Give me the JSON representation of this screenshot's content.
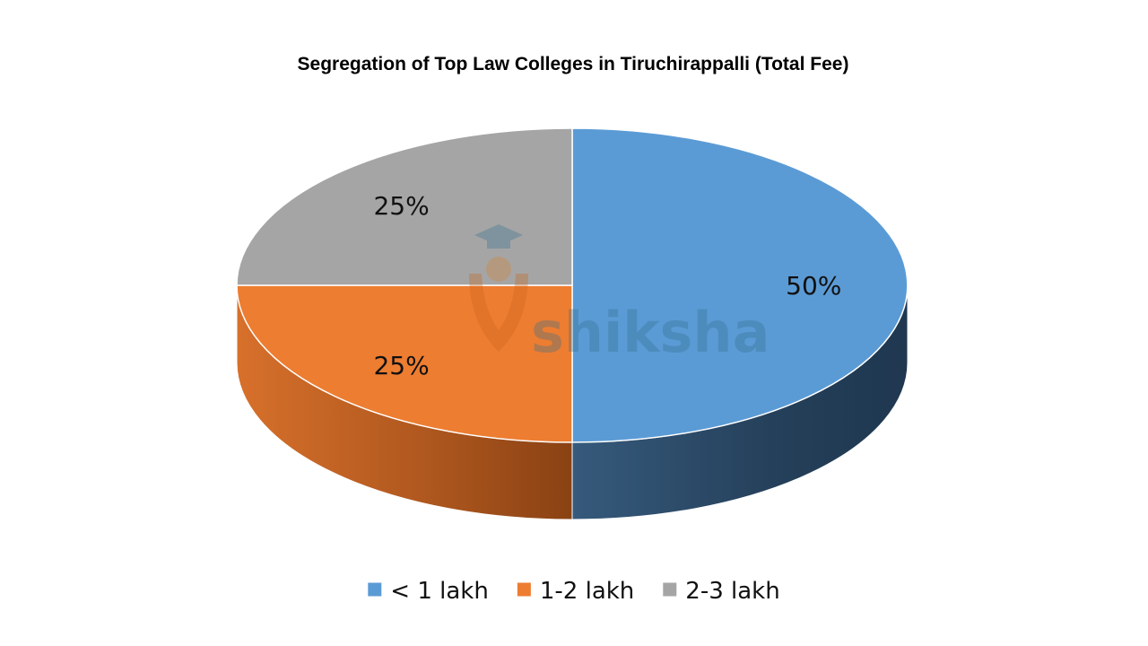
{
  "chart_data": {
    "type": "pie",
    "title": "Segregation of Top Law Colleges in Tiruchirappalli (Total Fee)",
    "slices": [
      {
        "label": "< 1 lakh",
        "value": 50,
        "display": "50%",
        "color": "#5b9bd5",
        "side_color": "#2a4560"
      },
      {
        "label": "1-2 lakh",
        "value": 25,
        "display": "25%",
        "color": "#ed7d31",
        "side_color": "#a3511c"
      },
      {
        "label": "2-3 lakh",
        "value": 25,
        "display": "25%",
        "color": "#a5a5a5",
        "side_color": "#6e6e6e"
      }
    ],
    "legend_position": "bottom",
    "style": "3d"
  },
  "watermark": {
    "text": "shiksha",
    "icon": "graduation-cap-logo"
  }
}
